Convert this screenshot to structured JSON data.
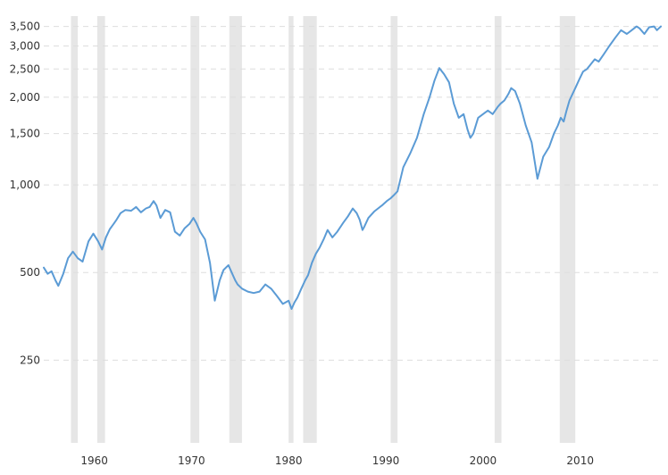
{
  "chart_data": {
    "type": "line",
    "title": "",
    "xlabel": "",
    "ylabel": "",
    "yscale": "log",
    "ylim": [
      130,
      3800
    ],
    "xlim": [
      1954.8,
      2018.3
    ],
    "y_ticks": [
      250,
      500,
      1000,
      1500,
      2000,
      2500,
      3000,
      3500
    ],
    "y_tick_labels": [
      "250",
      "500",
      "1,000",
      "1,500",
      "2,000",
      "2,500",
      "3,000",
      "3,500"
    ],
    "x_ticks": [
      1960,
      1970,
      1980,
      1990,
      2000,
      2010
    ],
    "x_tick_labels": [
      "1960",
      "1970",
      "1980",
      "1990",
      "2000",
      "2010"
    ],
    "grid": "horizontal dashed",
    "legend": "none",
    "colors": {
      "line": "#5b9bd5",
      "recession": "#e6e6e6",
      "grid": "#dddddd"
    },
    "recessions": [
      [
        1957.6,
        1958.3
      ],
      [
        1960.3,
        1961.1
      ],
      [
        1969.9,
        1970.8
      ],
      [
        1973.9,
        1975.2
      ],
      [
        1980.0,
        1980.5
      ],
      [
        1981.5,
        1982.9
      ],
      [
        1990.5,
        1991.2
      ],
      [
        2001.2,
        2001.9
      ],
      [
        2007.9,
        2009.5
      ]
    ],
    "series": [
      {
        "name": "",
        "x": [
          1954.8,
          1955.2,
          1955.6,
          1956.0,
          1956.3,
          1956.8,
          1957.3,
          1957.8,
          1958.3,
          1958.8,
          1959.4,
          1959.9,
          1960.4,
          1960.8,
          1961.2,
          1961.6,
          1962.0,
          1962.3,
          1962.7,
          1963.2,
          1963.8,
          1964.3,
          1964.8,
          1965.3,
          1965.7,
          1966.1,
          1966.4,
          1966.8,
          1967.3,
          1967.8,
          1968.3,
          1968.8,
          1969.3,
          1969.8,
          1970.2,
          1970.5,
          1970.9,
          1971.4,
          1971.9,
          1972.4,
          1972.9,
          1973.3,
          1973.8,
          1974.2,
          1974.5,
          1974.75,
          1975.2,
          1975.8,
          1976.4,
          1977.0,
          1977.6,
          1978.2,
          1978.8,
          1979.4,
          1980.0,
          1980.3,
          1980.6,
          1980.9,
          1981.3,
          1981.7,
          1982.0,
          1982.4,
          1982.8,
          1983.2,
          1983.6,
          1984.0,
          1984.5,
          1985.0,
          1985.6,
          1986.1,
          1986.6,
          1987.0,
          1987.3,
          1987.6,
          1987.8,
          1988.2,
          1988.8,
          1989.2,
          1989.6,
          1990.1,
          1990.5,
          1990.8,
          1991.2,
          1991.8,
          1992.5,
          1993.2,
          1993.9,
          1994.5,
          1995.0,
          1995.5,
          1996.0,
          1996.5,
          1997.0,
          1997.5,
          1998.0,
          1998.4,
          1998.7,
          1999.0,
          1999.5,
          2000.0,
          2000.5,
          2001.0,
          2001.5,
          2001.8,
          2002.2,
          2002.6,
          2002.9,
          2003.3,
          2003.8,
          2004.4,
          2005.0,
          2005.6,
          2006.2,
          2006.8,
          2007.3,
          2007.7,
          2008.0,
          2008.3,
          2008.6,
          2008.9,
          2009.2,
          2009.5,
          2009.9,
          2010.3,
          2010.7,
          2011.1,
          2011.5,
          2011.9,
          2012.4,
          2013.0,
          2013.6,
          2014.2,
          2014.8,
          2015.3,
          2015.8,
          2016.1,
          2016.6,
          2017.1,
          2017.6,
          2017.9,
          2018.1,
          2018.3
        ],
        "values": [
          520,
          495,
          505,
          470,
          450,
          495,
          560,
          590,
          560,
          545,
          640,
          680,
          640,
          600,
          660,
          705,
          735,
          760,
          800,
          820,
          815,
          840,
          805,
          830,
          840,
          880,
          850,
          770,
          820,
          805,
          690,
          670,
          710,
          735,
          770,
          740,
          690,
          650,
          540,
          400,
          470,
          510,
          530,
          495,
          470,
          455,
          440,
          430,
          425,
          430,
          455,
          440,
          415,
          390,
          400,
          375,
          395,
          410,
          440,
          470,
          490,
          540,
          580,
          610,
          650,
          700,
          660,
          690,
          740,
          780,
          830,
          800,
          760,
          700,
          720,
          770,
          810,
          830,
          850,
          880,
          900,
          920,
          950,
          1150,
          1280,
          1450,
          1750,
          2000,
          2280,
          2520,
          2400,
          2250,
          1900,
          1700,
          1750,
          1550,
          1450,
          1500,
          1700,
          1750,
          1800,
          1750,
          1850,
          1900,
          1950,
          2050,
          2150,
          2100,
          1900,
          1600,
          1400,
          1050,
          1250,
          1350,
          1500,
          1600,
          1700,
          1650,
          1800,
          1950,
          2050,
          2150,
          2300,
          2450,
          2500,
          2600,
          2700,
          2650,
          2800,
          3000,
          3200,
          3400,
          3300,
          3400,
          3500,
          3450,
          3300,
          3480,
          3500,
          3400,
          3450,
          3500
        ]
      }
    ]
  }
}
